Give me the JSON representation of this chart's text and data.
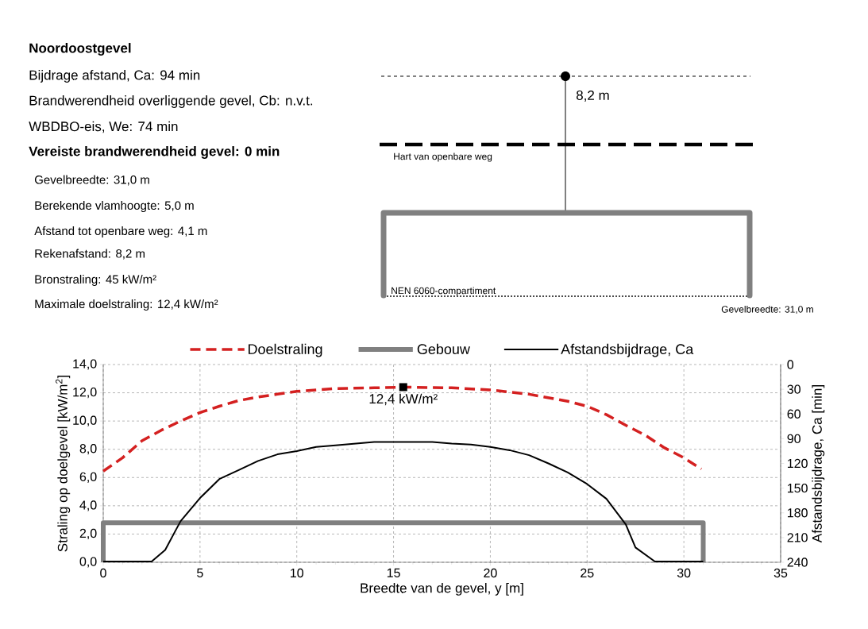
{
  "chart_data": [
    {
      "type": "other",
      "title": "Noordoostgevel",
      "annotations": [
        "Bijdrage afstand, Ca: 94 min",
        "Brandwerendheid overliggende gevel, Cb: n.v.t.",
        "WBDBO-eis, We: 74 min",
        "Vereiste brandwerendheid gevel: 0 min",
        "Gevelbreedte: 31,0 m",
        "Berekende vlamhoogte: 5,0 m",
        "Afstand tot openbare weg: 4,1 m",
        "Rekenafstand: 8,2 m",
        "Bronstraling: 45 kW/m²",
        "Maximale doelstraling: 12,4 kW/m²",
        "8,2 m",
        "Hart van openbare weg",
        "NEN 6060-compartiment",
        "Gevelbreedte: 31,0 m"
      ]
    },
    {
      "type": "line",
      "xlabel": "Breedte van de gevel, y [m]",
      "ylabel": "Straling op doelgevel [kW/m$^{2}$]",
      "y2label": "Afstandsbijdrage, Ca [min]",
      "xlim": [
        0,
        35
      ],
      "xticks": [
        0,
        5,
        10,
        15,
        20,
        25,
        30,
        35
      ],
      "ylim": [
        0,
        14
      ],
      "yticks": [
        {
          "value": 0,
          "label": "0,0"
        },
        {
          "value": 2,
          "label": "2,0"
        },
        {
          "value": 4,
          "label": "4,0"
        },
        {
          "value": 6,
          "label": "6,0"
        },
        {
          "value": 8,
          "label": "8,0"
        },
        {
          "value": 10,
          "label": "10,0"
        },
        {
          "value": 12,
          "label": "12,0"
        },
        {
          "value": 14,
          "label": "14,0"
        }
      ],
      "y2lim": [
        240,
        0
      ],
      "y2ticks": [
        0,
        30,
        60,
        90,
        120,
        150,
        180,
        210,
        240
      ],
      "grid": true,
      "legend": "top",
      "marker": "none",
      "series": [
        {
          "name": "Doelstraling",
          "color": "#d42020",
          "line_style": "dashed",
          "x": [
            0,
            1,
            2,
            3,
            4,
            5,
            6,
            7,
            8,
            9,
            10,
            12,
            14,
            15.5,
            18,
            20,
            22,
            24,
            25,
            26,
            27,
            28,
            29,
            30,
            30.9
          ],
          "values": [
            6.45,
            7.4,
            8.6,
            9.35,
            10.0,
            10.6,
            11.05,
            11.45,
            11.7,
            11.9,
            12.1,
            12.3,
            12.35,
            12.4,
            12.35,
            12.2,
            11.9,
            11.4,
            11.05,
            10.45,
            9.7,
            9.0,
            8.1,
            7.4,
            6.6
          ]
        },
        {
          "name": "Gebouw",
          "color": "#808080",
          "line_style": "solid",
          "x": [
            0,
            0,
            31,
            31
          ],
          "values": [
            0,
            2.8,
            2.8,
            0
          ]
        },
        {
          "name": "Afstandsbijdrage, Ca",
          "color": "#000000",
          "line_style": "solid",
          "axis": "y2",
          "x": [
            0,
            2.5,
            3.2,
            3.7,
            4,
            5,
            6,
            7,
            8,
            9,
            10,
            11,
            12,
            13,
            14,
            17,
            18,
            19,
            20,
            21,
            22,
            23,
            24,
            25,
            26,
            27,
            27.5,
            28.5,
            31
          ],
          "values": [
            239,
            239,
            225,
            203,
            190,
            162,
            139,
            128,
            117,
            109,
            105,
            100,
            98,
            96,
            94,
            94,
            96,
            97,
            100,
            104,
            110,
            120,
            131,
            145,
            163,
            194,
            222,
            239,
            239
          ]
        }
      ],
      "annotations": [
        {
          "text": "12,4 kW/m²",
          "x": 15.5,
          "y": 12.4
        }
      ]
    }
  ]
}
